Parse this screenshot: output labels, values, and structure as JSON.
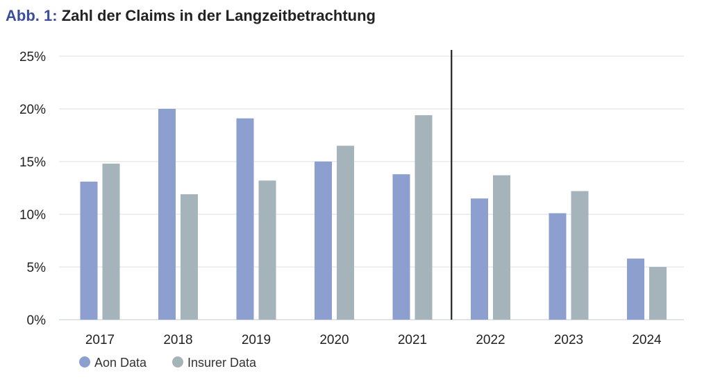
{
  "header": {
    "prefix": "Abb. 1:",
    "title": "Zahl der Claims in der Langzeitbetrachtung"
  },
  "chart_data": {
    "type": "bar",
    "title": "Zahl der Claims in der Langzeitbetrachtung",
    "xlabel": "",
    "ylabel": "",
    "categories": [
      "2017",
      "2018",
      "2019",
      "2020",
      "2021",
      "2022",
      "2023",
      "2024"
    ],
    "series": [
      {
        "name": "Aon Data",
        "color": "#8c9fcf",
        "values": [
          13.1,
          20.0,
          19.1,
          15.0,
          13.8,
          11.5,
          10.1,
          5.8
        ]
      },
      {
        "name": "Insurer Data",
        "color": "#a5b3ba",
        "values": [
          14.8,
          11.9,
          13.2,
          16.5,
          19.4,
          13.7,
          12.2,
          5.0
        ]
      }
    ],
    "ylim": [
      0,
      25
    ],
    "yticks": [
      "0%",
      "5%",
      "10%",
      "15%",
      "20%",
      "25%"
    ],
    "grid": true,
    "divider_after_category": "2021",
    "legend_position": "bottom-left"
  }
}
